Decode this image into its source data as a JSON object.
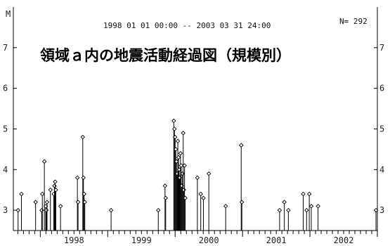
{
  "chart_data": {
    "type": "scatter",
    "title": "領域ａ内の地震活動経過図（規模別）",
    "period": "1998 01 01 00:00 -- 2003 03 31 24:00",
    "count_label": "N= 292",
    "ylabel": "M",
    "ylim": [
      2.5,
      8.0
    ],
    "xlim": [
      1997.6,
      2003.0
    ],
    "y_ticks": [
      "3",
      "4",
      "5",
      "6",
      "7"
    ],
    "x_ticks": [
      "1998",
      "1999",
      "2000",
      "2001",
      "2002"
    ],
    "series": [
      {
        "x": [
          1997.67,
          1997.72,
          1997.93,
          1998.02,
          1998.03,
          1998.06,
          1998.08,
          1998.09,
          1998.1,
          1998.15,
          1998.2,
          1998.21,
          1998.22,
          1998.23,
          1998.3,
          1998.55,
          1998.56,
          1998.63,
          1998.64,
          1998.65,
          1998.66,
          1999.05,
          1999.75,
          1999.85,
          1999.86,
          1999.98,
          1999.99,
          2000.0,
          2000.01,
          2000.02,
          2000.03,
          2000.04,
          2000.05,
          2000.06,
          2000.07,
          2000.08,
          2000.09,
          2000.1,
          2000.11,
          2000.12,
          2000.13,
          2000.14,
          2000.15,
          2000.33,
          2000.38,
          2000.42,
          2000.5,
          2000.75,
          2000.98,
          2000.99,
          2001.55,
          2001.62,
          2001.68,
          2001.9,
          2001.95,
          2001.99,
          2002.02,
          2002.12,
          2002.98
        ],
        "values": [
          3.0,
          3.4,
          3.2,
          3.0,
          3.4,
          4.2,
          3.1,
          3.0,
          3.2,
          3.5,
          3.4,
          3.6,
          3.7,
          3.5,
          3.1,
          3.8,
          3.2,
          4.8,
          3.8,
          3.4,
          3.2,
          3.0,
          3.0,
          3.6,
          3.3,
          5.2,
          5.0,
          4.8,
          4.5,
          4.2,
          3.9,
          4.7,
          4.3,
          4.0,
          3.8,
          4.4,
          4.1,
          3.6,
          3.9,
          4.9,
          3.5,
          4.1,
          3.3,
          3.8,
          3.4,
          3.3,
          3.9,
          3.1,
          4.6,
          3.2,
          3.0,
          3.2,
          3.0,
          3.4,
          3.0,
          3.4,
          3.1,
          3.1,
          3.0
        ]
      }
    ]
  }
}
